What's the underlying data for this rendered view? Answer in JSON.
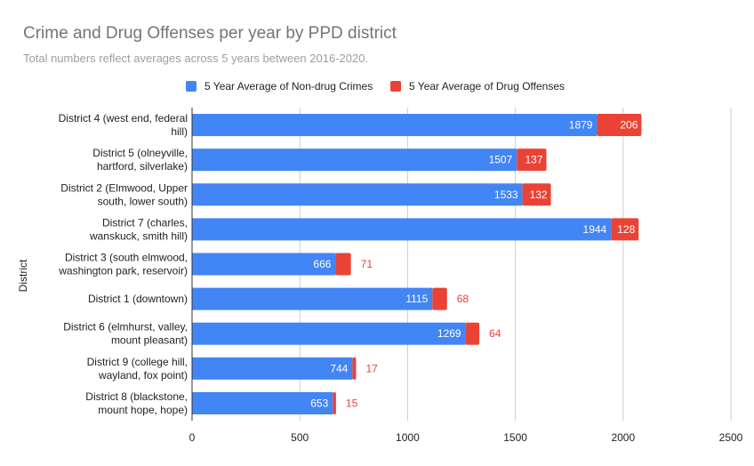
{
  "colors": {
    "non_drug": "#4285f4",
    "drug": "#ea4335",
    "grid": "#cccccc",
    "axis_text": "#222222"
  },
  "chart_data": {
    "type": "bar",
    "orientation": "horizontal",
    "stacked": true,
    "title": "Crime and Drug Offenses per year by PPD district",
    "subtitle": "Total numbers reflect averages across 5 years between 2016-2020.",
    "ylabel": "District",
    "xlabel": "",
    "xlim": [
      0,
      2500
    ],
    "xticks": [
      0,
      500,
      1000,
      1500,
      2000,
      2500
    ],
    "grid": true,
    "legend_position": "top",
    "categories": [
      [
        "District 4 (west end, federal",
        "hill)"
      ],
      [
        "District 5 (olneyville,",
        "hartford, silverlake)"
      ],
      [
        "District 2 (Elmwood, Upper",
        "south, lower south)"
      ],
      [
        "District 7 (charles,",
        "wanskuck, smith hill)"
      ],
      [
        "District 3 (south elmwood,",
        "washington park, reservoir)"
      ],
      [
        "District 1 (downtown)"
      ],
      [
        "District 6 (elmhurst, valley,",
        "mount pleasant)"
      ],
      [
        "District 9 (college hill,",
        "wayland, fox point)"
      ],
      [
        "District 8 (blackstone,",
        "mount hope, hope)"
      ]
    ],
    "series": [
      {
        "name": "5 Year Average of Non-drug Crimes",
        "values": [
          1879,
          1507,
          1533,
          1944,
          666,
          1115,
          1269,
          744,
          653
        ]
      },
      {
        "name": "5 Year Average of Drug Offenses",
        "values": [
          206,
          137,
          132,
          128,
          71,
          68,
          64,
          17,
          15
        ]
      }
    ]
  }
}
